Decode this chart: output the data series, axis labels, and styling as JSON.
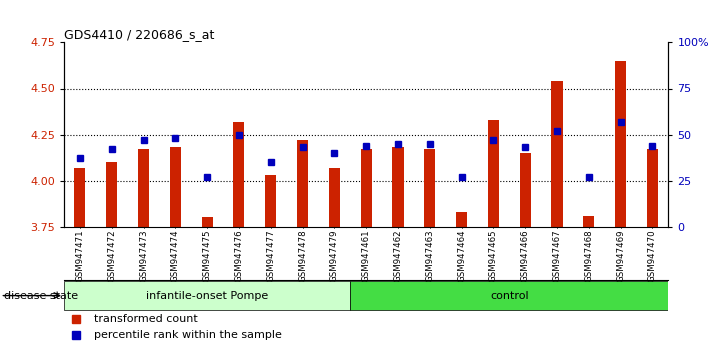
{
  "title": "GDS4410 / 220686_s_at",
  "samples": [
    "GSM947471",
    "GSM947472",
    "GSM947473",
    "GSM947474",
    "GSM947475",
    "GSM947476",
    "GSM947477",
    "GSM947478",
    "GSM947479",
    "GSM947461",
    "GSM947462",
    "GSM947463",
    "GSM947464",
    "GSM947465",
    "GSM947466",
    "GSM947467",
    "GSM947468",
    "GSM947469",
    "GSM947470"
  ],
  "transformed_count": [
    4.07,
    4.1,
    4.17,
    4.18,
    3.8,
    4.32,
    4.03,
    4.22,
    4.07,
    4.17,
    4.18,
    4.17,
    3.83,
    4.33,
    4.15,
    4.54,
    3.81,
    4.65,
    4.17
  ],
  "percentile_rank": [
    37,
    42,
    47,
    48,
    27,
    50,
    35,
    43,
    40,
    44,
    45,
    45,
    27,
    47,
    43,
    52,
    27,
    57,
    44
  ],
  "n_pompe": 9,
  "n_control": 10,
  "group_labels": [
    "infantile-onset Pompe",
    "control"
  ],
  "group_colors": [
    "#CCFFCC",
    "#44DD44"
  ],
  "ylim_left": [
    3.75,
    4.75
  ],
  "ylim_right": [
    0,
    100
  ],
  "yticks_left": [
    3.75,
    4.0,
    4.25,
    4.5,
    4.75
  ],
  "yticks_right": [
    0,
    25,
    50,
    75,
    100
  ],
  "ytick_right_labels": [
    "0",
    "25",
    "50",
    "75",
    "100%"
  ],
  "bar_color": "#CC2200",
  "marker_color": "#0000BB",
  "dotted_lines": [
    4.0,
    4.25,
    4.5
  ],
  "legend_labels": [
    "transformed count",
    "percentile rank within the sample"
  ],
  "disease_state_label": "disease state",
  "bar_width": 0.35,
  "xtick_bg_color": "#CCCCCC",
  "plot_bg_color": "#FFFFFF"
}
